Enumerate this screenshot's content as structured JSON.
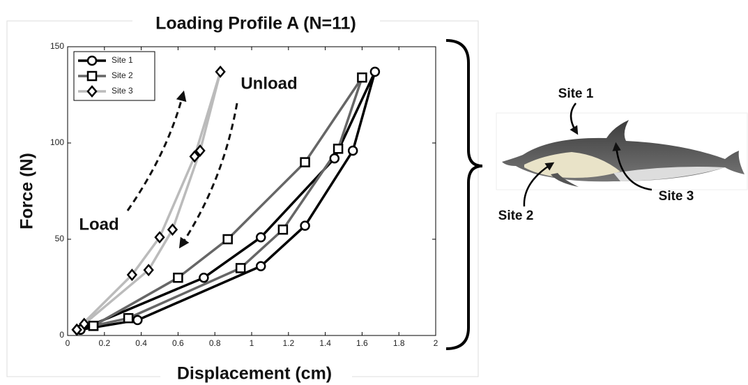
{
  "chart_data": {
    "type": "line",
    "title": "Loading Profile A (N=11)",
    "x_label": "Displacement (cm)",
    "y_label": "Force (N)",
    "annotations": [
      "Load",
      "Unload"
    ],
    "site_labels": [
      "Site 1",
      "Site 2",
      "Site 3"
    ],
    "xlim": [
      0,
      2
    ],
    "xticks": [
      0,
      0.2,
      0.4,
      0.6,
      0.8,
      1,
      1.2,
      1.4,
      1.6,
      1.8,
      2
    ],
    "ylim": [
      0,
      150
    ],
    "yticks": [
      0,
      50,
      100,
      150
    ],
    "legend": "upper left",
    "marker_color": "#000000",
    "series": [
      {
        "name": "Site 1",
        "color": "#000000",
        "marker": "circle",
        "x": [
          0.07,
          0.38,
          1.05,
          1.29,
          1.55,
          1.67,
          1.45,
          1.05,
          0.74,
          0.07
        ],
        "values": [
          3,
          8,
          36,
          57,
          96,
          137,
          92,
          51,
          30,
          3
        ]
      },
      {
        "name": "Site 2",
        "color": "#666666",
        "marker": "square",
        "x": [
          0.14,
          0.33,
          0.94,
          1.17,
          1.47,
          1.6,
          1.29,
          0.87,
          0.6,
          0.14
        ],
        "values": [
          5,
          9,
          35,
          55,
          97,
          134,
          90,
          50,
          30,
          5
        ]
      },
      {
        "name": "Site 3",
        "color": "#bbbbbb",
        "marker": "diamond",
        "x": [
          0.05,
          0.09,
          0.44,
          0.57,
          0.72,
          0.83,
          0.69,
          0.5,
          0.35,
          0.05
        ],
        "values": [
          3,
          6,
          34,
          55,
          96,
          137,
          93,
          51,
          31.5,
          3
        ]
      }
    ]
  }
}
